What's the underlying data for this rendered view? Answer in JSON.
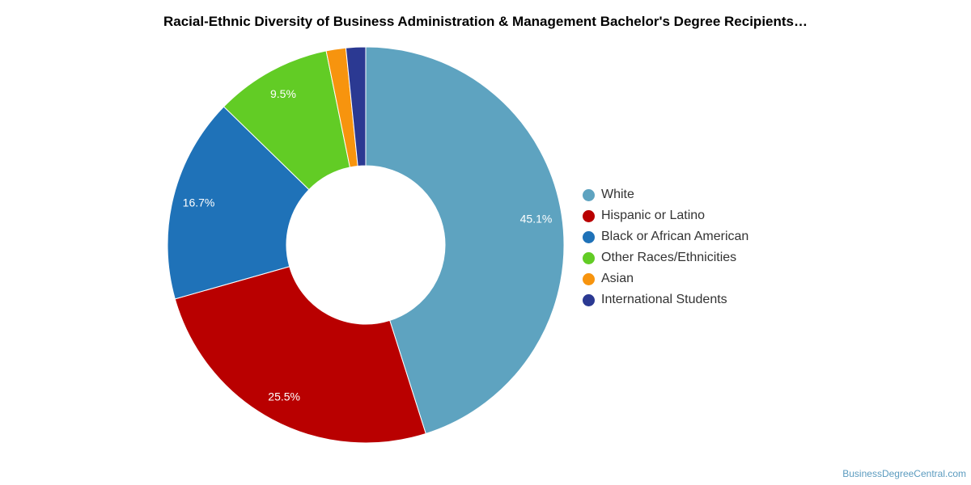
{
  "chart_data": {
    "type": "pie",
    "title": "Racial-Ethnic Diversity of Business Administration & Management Bachelor's Degree Recipients…",
    "donut": true,
    "categories": [
      "White",
      "Hispanic or Latino",
      "Black or African American",
      "Other Races/Ethnicities",
      "Asian",
      "International Students"
    ],
    "values": [
      45.1,
      25.5,
      16.7,
      9.5,
      1.6,
      1.6
    ],
    "data_labels": [
      "45.1%",
      "25.5%",
      "16.7%",
      "9.5%",
      "",
      ""
    ],
    "colors": [
      "#5ea3c0",
      "#b90000",
      "#1f72b8",
      "#62cc25",
      "#f7940e",
      "#2b3992"
    ],
    "legend_position": "right"
  },
  "watermark": "BusinessDegreeCentral.com"
}
